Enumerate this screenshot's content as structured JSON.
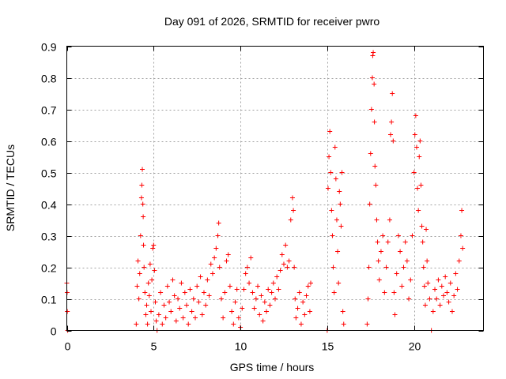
{
  "chart_data": {
    "type": "scatter",
    "title": "Day 091 of 2026, SRMTID for receiver pwro",
    "xlabel": "GPS time / hours",
    "ylabel": "SRMTID / TECUs",
    "xlim": [
      0,
      24
    ],
    "ylim": [
      0,
      0.9
    ],
    "xticks": [
      0,
      5,
      10,
      15,
      20
    ],
    "xtick_labels": [
      "0",
      "5",
      "10",
      "15",
      "20"
    ],
    "yticks": [
      0,
      0.1,
      0.2,
      0.3,
      0.4,
      0.5,
      0.6,
      0.7,
      0.8,
      0.9
    ],
    "ytick_labels": [
      "0",
      "0.1",
      "0.2",
      "0.3",
      "0.4",
      "0.5",
      "0.6",
      "0.7",
      "0.8",
      "0.9"
    ],
    "grid": true,
    "marker": "+",
    "color": "#ff0000",
    "series": [
      {
        "name": "SRMTID",
        "points": [
          [
            0.0,
            0.15
          ],
          [
            0.02,
            0.12
          ],
          [
            0.03,
            0.06
          ],
          [
            0.05,
            0.0
          ],
          [
            4.0,
            0.02
          ],
          [
            4.05,
            0.14
          ],
          [
            4.1,
            0.22
          ],
          [
            4.15,
            0.1
          ],
          [
            4.2,
            0.18
          ],
          [
            4.25,
            0.3
          ],
          [
            4.3,
            0.42
          ],
          [
            4.32,
            0.46
          ],
          [
            4.35,
            0.51
          ],
          [
            4.38,
            0.4
          ],
          [
            4.4,
            0.36
          ],
          [
            4.42,
            0.27
          ],
          [
            4.45,
            0.2
          ],
          [
            4.5,
            0.12
          ],
          [
            4.55,
            0.05
          ],
          [
            4.6,
            0.08
          ],
          [
            4.65,
            0.02
          ],
          [
            4.7,
            0.15
          ],
          [
            4.75,
            0.11
          ],
          [
            4.8,
            0.21
          ],
          [
            4.85,
            0.06
          ],
          [
            4.9,
            0.16
          ],
          [
            4.95,
            0.26
          ],
          [
            5.0,
            0.27
          ],
          [
            5.05,
            0.19
          ],
          [
            5.1,
            0.09
          ],
          [
            5.15,
            0.03
          ],
          [
            5.2,
            0.0
          ],
          [
            5.3,
            0.05
          ],
          [
            5.4,
            0.12
          ],
          [
            5.5,
            0.02
          ],
          [
            5.6,
            0.08
          ],
          [
            5.7,
            0.04
          ],
          [
            5.8,
            0.14
          ],
          [
            5.9,
            0.09
          ],
          [
            6.0,
            0.06
          ],
          [
            6.1,
            0.16
          ],
          [
            6.2,
            0.11
          ],
          [
            6.3,
            0.03
          ],
          [
            6.4,
            0.1
          ],
          [
            6.5,
            0.07
          ],
          [
            6.6,
            0.15
          ],
          [
            6.7,
            0.04
          ],
          [
            6.8,
            0.12
          ],
          [
            6.9,
            0.08
          ],
          [
            7.0,
            0.02
          ],
          [
            7.1,
            0.13
          ],
          [
            7.2,
            0.06
          ],
          [
            7.3,
            0.1
          ],
          [
            7.4,
            0.04
          ],
          [
            7.5,
            0.14
          ],
          [
            7.6,
            0.09
          ],
          [
            7.7,
            0.17
          ],
          [
            7.8,
            0.05
          ],
          [
            7.9,
            0.12
          ],
          [
            8.0,
            0.08
          ],
          [
            8.1,
            0.16
          ],
          [
            8.2,
            0.11
          ],
          [
            8.3,
            0.21
          ],
          [
            8.4,
            0.18
          ],
          [
            8.5,
            0.23
          ],
          [
            8.6,
            0.26
          ],
          [
            8.7,
            0.3
          ],
          [
            8.75,
            0.34
          ],
          [
            8.8,
            0.2
          ],
          [
            8.9,
            0.1
          ],
          [
            9.0,
            0.04
          ],
          [
            9.1,
            0.12
          ],
          [
            9.2,
            0.22
          ],
          [
            9.3,
            0.24
          ],
          [
            9.4,
            0.14
          ],
          [
            9.5,
            0.06
          ],
          [
            9.6,
            0.02
          ],
          [
            9.7,
            0.09
          ],
          [
            9.8,
            0.13
          ],
          [
            9.9,
            0.04
          ],
          [
            10.0,
            0.01
          ],
          [
            10.1,
            0.07
          ],
          [
            10.2,
            0.13
          ],
          [
            10.3,
            0.18
          ],
          [
            10.4,
            0.2
          ],
          [
            10.5,
            0.15
          ],
          [
            10.6,
            0.23
          ],
          [
            10.7,
            0.12
          ],
          [
            10.8,
            0.07
          ],
          [
            10.9,
            0.1
          ],
          [
            11.0,
            0.14
          ],
          [
            11.1,
            0.05
          ],
          [
            11.2,
            0.11
          ],
          [
            11.3,
            0.03
          ],
          [
            11.4,
            0.09
          ],
          [
            11.5,
            0.06
          ],
          [
            11.6,
            0.13
          ],
          [
            11.7,
            0.08
          ],
          [
            11.8,
            0.12
          ],
          [
            11.9,
            0.15
          ],
          [
            12.0,
            0.1
          ],
          [
            12.1,
            0.17
          ],
          [
            12.2,
            0.13
          ],
          [
            12.3,
            0.19
          ],
          [
            12.4,
            0.24
          ],
          [
            12.5,
            0.21
          ],
          [
            12.6,
            0.27
          ],
          [
            12.7,
            0.2
          ],
          [
            12.8,
            0.22
          ],
          [
            12.9,
            0.35
          ],
          [
            13.0,
            0.42
          ],
          [
            13.05,
            0.38
          ],
          [
            13.1,
            0.2
          ],
          [
            13.15,
            0.1
          ],
          [
            13.2,
            0.04
          ],
          [
            13.3,
            0.07
          ],
          [
            13.4,
            0.12
          ],
          [
            13.5,
            0.02
          ],
          [
            13.6,
            0.09
          ],
          [
            13.7,
            0.05
          ],
          [
            13.8,
            0.11
          ],
          [
            13.9,
            0.14
          ],
          [
            14.0,
            0.06
          ],
          [
            14.05,
            0.15
          ],
          [
            15.0,
            0.0
          ],
          [
            15.05,
            0.45
          ],
          [
            15.1,
            0.55
          ],
          [
            15.15,
            0.63
          ],
          [
            15.2,
            0.5
          ],
          [
            15.25,
            0.38
          ],
          [
            15.3,
            0.3
          ],
          [
            15.35,
            0.2
          ],
          [
            15.4,
            0.12
          ],
          [
            15.45,
            0.58
          ],
          [
            15.5,
            0.48
          ],
          [
            15.55,
            0.35
          ],
          [
            15.6,
            0.25
          ],
          [
            15.65,
            0.15
          ],
          [
            15.7,
            0.44
          ],
          [
            15.75,
            0.4
          ],
          [
            15.8,
            0.33
          ],
          [
            15.85,
            0.5
          ],
          [
            15.9,
            0.06
          ],
          [
            15.95,
            0.02
          ],
          [
            17.3,
            0.02
          ],
          [
            17.35,
            0.1
          ],
          [
            17.4,
            0.2
          ],
          [
            17.45,
            0.4
          ],
          [
            17.5,
            0.56
          ],
          [
            17.55,
            0.7
          ],
          [
            17.6,
            0.8
          ],
          [
            17.62,
            0.87
          ],
          [
            17.65,
            0.88
          ],
          [
            17.7,
            0.78
          ],
          [
            17.72,
            0.66
          ],
          [
            17.75,
            0.52
          ],
          [
            17.8,
            0.46
          ],
          [
            17.85,
            0.35
          ],
          [
            17.9,
            0.28
          ],
          [
            17.95,
            0.22
          ],
          [
            18.0,
            0.16
          ],
          [
            18.1,
            0.25
          ],
          [
            18.2,
            0.3
          ],
          [
            18.3,
            0.12
          ],
          [
            18.4,
            0.2
          ],
          [
            18.5,
            0.28
          ],
          [
            18.6,
            0.35
          ],
          [
            18.65,
            0.62
          ],
          [
            18.7,
            0.66
          ],
          [
            18.75,
            0.75
          ],
          [
            18.8,
            0.6
          ],
          [
            18.85,
            0.12
          ],
          [
            18.9,
            0.05
          ],
          [
            19.0,
            0.18
          ],
          [
            19.1,
            0.3
          ],
          [
            19.2,
            0.25
          ],
          [
            19.3,
            0.14
          ],
          [
            19.4,
            0.2
          ],
          [
            19.5,
            0.28
          ],
          [
            19.6,
            0.22
          ],
          [
            19.7,
            0.1
          ],
          [
            19.8,
            0.16
          ],
          [
            19.9,
            0.3
          ],
          [
            20.0,
            0.5
          ],
          [
            20.05,
            0.62
          ],
          [
            20.1,
            0.68
          ],
          [
            20.15,
            0.58
          ],
          [
            20.2,
            0.45
          ],
          [
            20.25,
            0.38
          ],
          [
            20.3,
            0.55
          ],
          [
            20.35,
            0.6
          ],
          [
            20.4,
            0.46
          ],
          [
            20.45,
            0.33
          ],
          [
            20.5,
            0.28
          ],
          [
            20.55,
            0.2
          ],
          [
            20.6,
            0.14
          ],
          [
            20.65,
            0.08
          ],
          [
            20.7,
            0.32
          ],
          [
            20.75,
            0.22
          ],
          [
            20.8,
            0.15
          ],
          [
            20.9,
            0.1
          ],
          [
            21.0,
            0.0
          ],
          [
            21.1,
            0.06
          ],
          [
            21.2,
            0.13
          ],
          [
            21.3,
            0.1
          ],
          [
            21.4,
            0.16
          ],
          [
            21.5,
            0.08
          ],
          [
            21.6,
            0.14
          ],
          [
            21.7,
            0.11
          ],
          [
            21.8,
            0.17
          ],
          [
            21.9,
            0.12
          ],
          [
            22.0,
            0.09
          ],
          [
            22.1,
            0.15
          ],
          [
            22.2,
            0.06
          ],
          [
            22.3,
            0.11
          ],
          [
            22.4,
            0.18
          ],
          [
            22.5,
            0.13
          ],
          [
            22.6,
            0.22
          ],
          [
            22.7,
            0.3
          ],
          [
            22.75,
            0.38
          ],
          [
            22.8,
            0.26
          ]
        ]
      }
    ]
  }
}
